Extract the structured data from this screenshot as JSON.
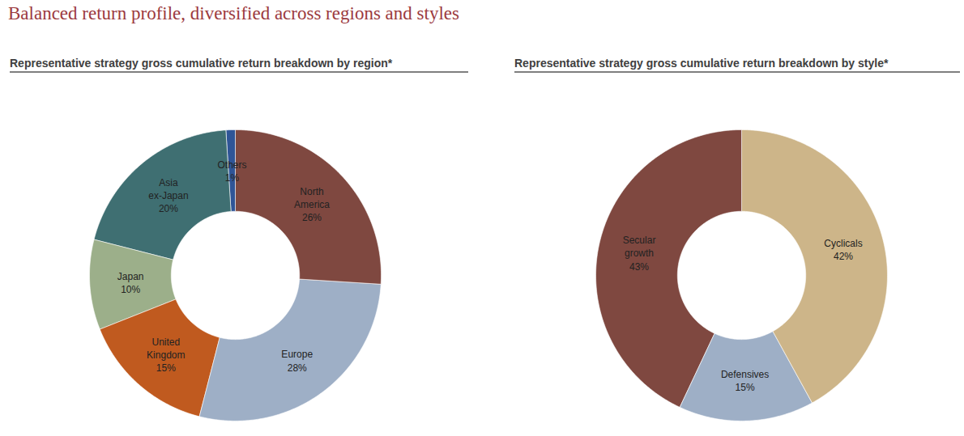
{
  "title": "Balanced return profile, diversified across regions and styles",
  "chart_data": [
    {
      "type": "donut",
      "title": "Representative strategy gross cumulative return breakdown by region*",
      "categories": [
        "North America",
        "Europe",
        "United Kingdom",
        "Japan",
        "Asia ex-Japan",
        "Others"
      ],
      "values": [
        26,
        28,
        15,
        10,
        20,
        1
      ],
      "value_labels": [
        "26%",
        "28%",
        "15%",
        "10%",
        "20%",
        "1%"
      ],
      "colors": [
        "#7f4840",
        "#9eafc6",
        "#c05a1f",
        "#9caf8a",
        "#3f6f72",
        "#2f5597"
      ],
      "data_labels": true
    },
    {
      "type": "donut",
      "title": "Representative strategy gross cumulative return breakdown by style*",
      "categories": [
        "Cyclicals",
        "Defensives",
        "Secular growth"
      ],
      "values": [
        42,
        15,
        43
      ],
      "value_labels": [
        "42%",
        "15%",
        "43%"
      ],
      "colors": [
        "#cdb589",
        "#9eafc6",
        "#7f4840"
      ],
      "data_labels": true
    }
  ]
}
